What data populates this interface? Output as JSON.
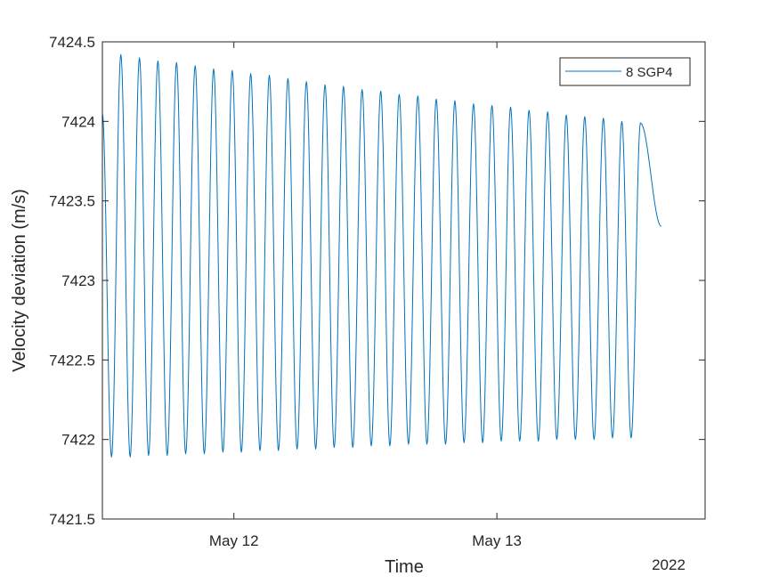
{
  "chart_data": {
    "type": "line",
    "title": "",
    "xlabel": "Time",
    "ylabel": "Velocity deviation (m/s)",
    "x_year_label": "2022",
    "x_tick_labels": [
      "May 12",
      "May 13"
    ],
    "x_ticks": [
      "2022-05-12 00:00",
      "2022-05-13 00:00"
    ],
    "xlim": [
      "2022-05-11 12:00",
      "2022-05-13 19:00"
    ],
    "ylim": [
      7421.5,
      7424.5
    ],
    "y_ticks": [
      7421.5,
      7422,
      7422.5,
      7423,
      7423.5,
      7424,
      7424.5
    ],
    "y_tick_labels": [
      "7421.5",
      "7422",
      "7422.5",
      "7423",
      "7423.5",
      "7424",
      "7424.5"
    ],
    "grid": false,
    "legend_position": "top-right",
    "series": [
      {
        "name": "8 SGP4",
        "color": "#0072BD",
        "x_start": "2022-05-11 12:00",
        "x_end": "2022-05-13 15:00",
        "peaks": [
          [
            "2022-05-11 13:41",
            7424.42
          ],
          [
            "2022-05-11 15:23",
            7424.4
          ],
          [
            "2022-05-11 17:04",
            7424.38
          ],
          [
            "2022-05-11 18:46",
            7424.37
          ],
          [
            "2022-05-11 20:28",
            7424.35
          ],
          [
            "2022-05-11 22:09",
            7424.33
          ],
          [
            "2022-05-11 23:51",
            7424.32
          ],
          [
            "2022-05-12 01:32",
            7424.3
          ],
          [
            "2022-05-12 03:14",
            7424.29
          ],
          [
            "2022-05-12 04:56",
            7424.27
          ],
          [
            "2022-05-12 06:37",
            7424.25
          ],
          [
            "2022-05-12 08:19",
            7424.23
          ],
          [
            "2022-05-12 10:00",
            7424.22
          ],
          [
            "2022-05-12 11:42",
            7424.2
          ],
          [
            "2022-05-12 13:24",
            7424.19
          ],
          [
            "2022-05-12 15:05",
            7424.17
          ],
          [
            "2022-05-12 16:47",
            7424.16
          ],
          [
            "2022-05-12 18:28",
            7424.14
          ],
          [
            "2022-05-12 20:10",
            7424.13
          ],
          [
            "2022-05-12 21:52",
            7424.11
          ],
          [
            "2022-05-12 23:33",
            7424.1
          ],
          [
            "2022-05-13 01:15",
            7424.09
          ],
          [
            "2022-05-13 02:56",
            7424.07
          ],
          [
            "2022-05-13 04:38",
            7424.06
          ],
          [
            "2022-05-13 06:20",
            7424.04
          ],
          [
            "2022-05-13 08:01",
            7424.03
          ],
          [
            "2022-05-13 09:43",
            7424.02
          ],
          [
            "2022-05-13 11:24",
            7424.0
          ],
          [
            "2022-05-13 13:06",
            7423.99
          ]
        ],
        "troughs": [
          [
            "2022-05-11 12:50",
            7421.89
          ],
          [
            "2022-05-11 14:32",
            7421.89
          ],
          [
            "2022-05-11 16:13",
            7421.9
          ],
          [
            "2022-05-11 17:55",
            7421.9
          ],
          [
            "2022-05-11 19:36",
            7421.91
          ],
          [
            "2022-05-11 21:18",
            7421.91
          ],
          [
            "2022-05-11 23:00",
            7421.92
          ],
          [
            "2022-05-12 00:41",
            7421.92
          ],
          [
            "2022-05-12 02:23",
            7421.93
          ],
          [
            "2022-05-12 04:04",
            7421.93
          ],
          [
            "2022-05-12 05:46",
            7421.94
          ],
          [
            "2022-05-12 07:28",
            7421.94
          ],
          [
            "2022-05-12 09:09",
            7421.95
          ],
          [
            "2022-05-12 10:51",
            7421.95
          ],
          [
            "2022-05-12 12:32",
            7421.96
          ],
          [
            "2022-05-12 14:14",
            7421.96
          ],
          [
            "2022-05-12 15:56",
            7421.97
          ],
          [
            "2022-05-12 17:37",
            7421.97
          ],
          [
            "2022-05-12 19:19",
            7421.97
          ],
          [
            "2022-05-12 21:00",
            7421.98
          ],
          [
            "2022-05-12 22:42",
            7421.98
          ],
          [
            "2022-05-13 00:24",
            7421.99
          ],
          [
            "2022-05-13 02:05",
            7421.99
          ],
          [
            "2022-05-13 03:47",
            7421.99
          ],
          [
            "2022-05-13 05:28",
            7422.0
          ],
          [
            "2022-05-13 07:10",
            7422.0
          ],
          [
            "2022-05-13 08:52",
            7422.0
          ],
          [
            "2022-05-13 10:33",
            7422.01
          ],
          [
            "2022-05-13 12:15",
            7422.01
          ]
        ],
        "first_value": 7424.05,
        "last_value": 7423.34
      }
    ]
  }
}
